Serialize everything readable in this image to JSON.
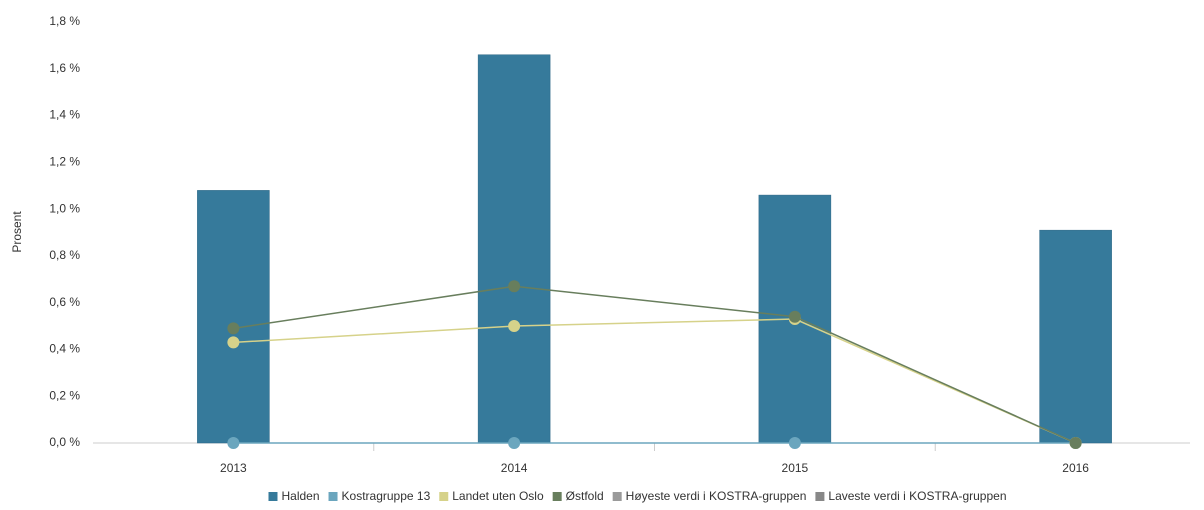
{
  "chart_data": {
    "type": "bar",
    "y_label": "Prosent",
    "categories": [
      "2013",
      "2014",
      "2015",
      "2016"
    ],
    "series": [
      {
        "name": "Halden",
        "color": "#367a9b",
        "kind": "bar",
        "values": [
          1.08,
          1.66,
          1.06,
          0.91
        ]
      },
      {
        "name": "Kostragruppe 13",
        "color": "#6ba6be",
        "kind": "line",
        "values": [
          0,
          0,
          0,
          0
        ]
      },
      {
        "name": "Landet uten Oslo",
        "color": "#d6d28a",
        "kind": "line",
        "values": [
          0.43,
          0.5,
          0.53,
          0
        ]
      },
      {
        "name": "Østfold",
        "color": "#687e5d",
        "kind": "line",
        "values": [
          0.49,
          0.67,
          0.54,
          0
        ]
      },
      {
        "name": "Høyeste verdi i KOSTRA-gruppen",
        "color": "#9a9a9a",
        "kind": "line",
        "values": [
          null,
          null,
          null,
          null
        ]
      },
      {
        "name": "Laveste verdi i KOSTRA-gruppen",
        "color": "#888888",
        "kind": "line",
        "values": [
          null,
          null,
          null,
          null
        ]
      }
    ],
    "ylim": [
      0,
      1.8
    ],
    "yticks": [
      {
        "value": 0,
        "label": "0,0 %"
      },
      {
        "value": 0.2,
        "label": "0,2 %"
      },
      {
        "value": 0.4,
        "label": "0,4 %"
      },
      {
        "value": 0.6,
        "label": "0,6 %"
      },
      {
        "value": 0.8,
        "label": "0,8 %"
      },
      {
        "value": 1.0,
        "label": "1,0 %"
      },
      {
        "value": 1.2,
        "label": "1,2 %"
      },
      {
        "value": 1.4,
        "label": "1,4 %"
      },
      {
        "value": 1.6,
        "label": "1,6 %"
      },
      {
        "value": 1.8,
        "label": "1,8 %"
      }
    ],
    "grid": false
  }
}
